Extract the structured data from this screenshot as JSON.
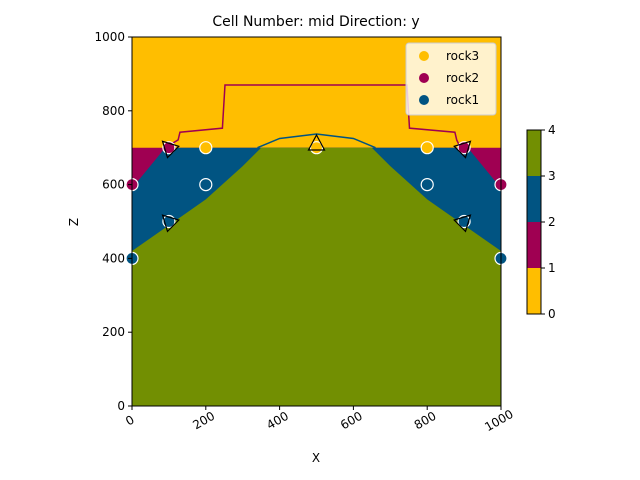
{
  "chart_data": {
    "type": "geologic_section",
    "title": "Cell Number: mid Direction: y",
    "xlabel": "X",
    "ylabel": "Z",
    "xlim": [
      0,
      1000
    ],
    "ylim": [
      0,
      1000
    ],
    "xticks": [
      0,
      200,
      400,
      600,
      800,
      1000
    ],
    "yticks": [
      0,
      200,
      400,
      600,
      800,
      1000
    ],
    "background": "#ffbe00",
    "regions": [
      {
        "color": "#9f0052",
        "x": [
          0,
          1000,
          1000,
          0
        ],
        "z": [
          0,
          0,
          700,
          700
        ]
      },
      {
        "color": "#015482",
        "x": [
          0,
          0,
          90,
          910,
          1000,
          1000
        ],
        "z": [
          0,
          590,
          700,
          700,
          590,
          0
        ]
      },
      {
        "color": "#728f02",
        "x": [
          0,
          0,
          100,
          200,
          300,
          350,
          650,
          700,
          800,
          900,
          1000,
          1000
        ],
        "z": [
          0,
          420,
          490,
          560,
          650,
          700,
          700,
          650,
          560,
          490,
          420,
          0
        ]
      }
    ],
    "lines": [
      {
        "color": "#9f0052",
        "x": [
          90,
          125,
          130,
          245,
          252,
          745,
          752,
          875,
          880,
          890
        ],
        "z": [
          700,
          721,
          742,
          753,
          870,
          870,
          753,
          742,
          721,
          700
        ]
      },
      {
        "color": "#015482",
        "x": [
          340,
          400,
          500,
          600,
          660
        ],
        "z": [
          700,
          725,
          737,
          725,
          700
        ]
      }
    ],
    "series": [
      {
        "name": "rock3",
        "color": "#ffbe00",
        "x": [
          200,
          500,
          800
        ],
        "values": [
          700,
          700,
          700
        ]
      },
      {
        "name": "rock2",
        "color": "#9f0052",
        "x": [
          0,
          100,
          900,
          1000
        ],
        "values": [
          600,
          700,
          700,
          600
        ]
      },
      {
        "name": "rock1",
        "color": "#015482",
        "x": [
          0,
          100,
          200,
          800,
          900,
          1000
        ],
        "values": [
          400,
          500,
          600,
          600,
          500,
          400
        ]
      }
    ],
    "orientations": {
      "x": [
        100,
        100,
        500,
        900,
        900
      ],
      "z": [
        700,
        500,
        710,
        700,
        500
      ],
      "angle": [
        -45,
        -45,
        0,
        45,
        45
      ]
    },
    "legend": "upper right",
    "colorbar": {
      "colors": [
        "#ffbe00",
        "#9f0052",
        "#015482",
        "#728f02"
      ],
      "lim": [
        0,
        4
      ],
      "ticks": [
        0,
        1,
        2,
        3,
        4
      ]
    }
  }
}
